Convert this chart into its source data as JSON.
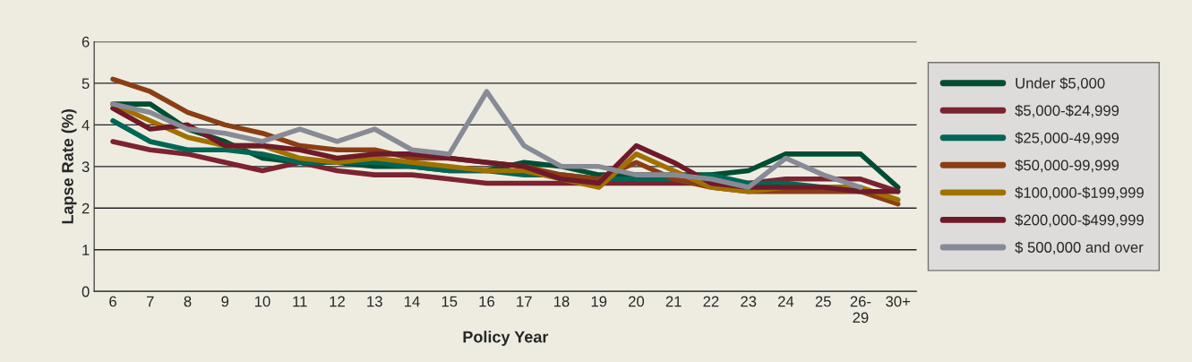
{
  "chart_data": {
    "type": "line",
    "xlabel": "Policy Year",
    "ylabel": "Lapse Rate (%)",
    "categories": [
      "6",
      "7",
      "8",
      "9",
      "10",
      "11",
      "12",
      "13",
      "14",
      "15",
      "16",
      "17",
      "18",
      "19",
      "20",
      "21",
      "22",
      "23",
      "24",
      "25",
      "26-\n29",
      "30+"
    ],
    "ylim": [
      0,
      6
    ],
    "yticks": [
      0,
      1,
      2,
      3,
      4,
      5,
      6
    ],
    "grid": "y",
    "legend": "right",
    "marker": "none",
    "line_style": "solid",
    "series": [
      {
        "name": "Under $5,000",
        "color": "#004d33",
        "values": [
          4.5,
          4.5,
          3.9,
          3.6,
          3.2,
          3.1,
          3.1,
          3.0,
          3.0,
          2.9,
          2.9,
          3.1,
          3.0,
          2.8,
          2.8,
          2.8,
          2.8,
          2.9,
          3.3,
          3.3,
          3.3,
          2.5
        ]
      },
      {
        "name": "$5,000-$24,999",
        "color": "#7b2330",
        "values": [
          3.6,
          3.4,
          3.3,
          3.1,
          2.9,
          3.1,
          2.9,
          2.8,
          2.8,
          2.7,
          2.6,
          2.6,
          2.6,
          2.6,
          2.6,
          2.6,
          2.6,
          2.6,
          2.7,
          2.7,
          2.7,
          2.4
        ]
      },
      {
        "name": "$25,000-49,999",
        "color": "#006655",
        "values": [
          4.1,
          3.6,
          3.4,
          3.4,
          3.3,
          3.1,
          3.1,
          3.1,
          3.0,
          2.9,
          2.9,
          2.8,
          2.8,
          2.7,
          2.7,
          2.7,
          2.8,
          2.6,
          2.6,
          2.5,
          2.5,
          null
        ]
      },
      {
        "name": "$50,000-99,999",
        "color": "#8b3e14",
        "values": [
          5.1,
          4.8,
          4.3,
          4.0,
          3.8,
          3.5,
          3.4,
          3.4,
          3.2,
          3.2,
          3.1,
          3.0,
          2.8,
          2.7,
          3.1,
          2.7,
          2.5,
          2.4,
          2.4,
          2.4,
          2.4,
          2.1
        ]
      },
      {
        "name": "$100,000-$199,999",
        "color": "#a07000",
        "values": [
          4.5,
          4.1,
          3.7,
          3.5,
          3.5,
          3.2,
          3.1,
          3.2,
          3.1,
          3.0,
          2.9,
          2.9,
          2.7,
          2.5,
          3.3,
          2.9,
          2.5,
          2.4,
          2.5,
          2.5,
          2.5,
          2.2
        ]
      },
      {
        "name": "$200,000-$499,999",
        "color": "#6e1a2a",
        "values": [
          4.4,
          3.9,
          4.0,
          3.5,
          3.5,
          3.4,
          3.2,
          3.3,
          3.3,
          3.2,
          3.1,
          3.0,
          2.7,
          2.6,
          3.5,
          3.1,
          2.6,
          2.5,
          2.5,
          2.5,
          2.4,
          2.4
        ]
      },
      {
        "name": "$ 500,000 and over",
        "color": "#888b96",
        "values": [
          4.5,
          4.3,
          3.9,
          3.8,
          3.6,
          3.9,
          3.6,
          3.9,
          3.4,
          3.3,
          4.8,
          3.5,
          3.0,
          3.0,
          2.8,
          2.8,
          2.7,
          2.5,
          3.2,
          2.8,
          2.5,
          null
        ]
      }
    ]
  }
}
